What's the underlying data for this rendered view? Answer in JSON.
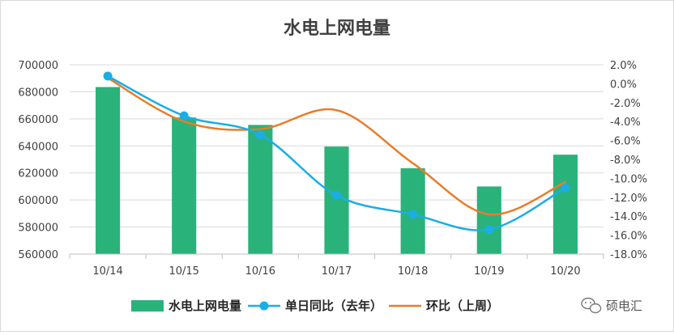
{
  "chart_data": {
    "type": "bar",
    "title": "水电上网电量",
    "categories": [
      "10/14",
      "10/15",
      "10/16",
      "10/17",
      "10/18",
      "10/19",
      "10/20"
    ],
    "series": [
      {
        "name": "水电上网电量",
        "type": "bar",
        "axis": "left",
        "color": "#2ab27b",
        "values": [
          683500,
          661000,
          655500,
          639500,
          623500,
          610000,
          633500
        ]
      },
      {
        "name": "单日同比（去年）",
        "type": "line",
        "axis": "right",
        "color": "#1aaee5",
        "markers": true,
        "values": [
          0.8,
          -3.4,
          -5.4,
          -11.8,
          -13.8,
          -15.4,
          -11.0
        ]
      },
      {
        "name": "环比（上周）",
        "type": "line",
        "axis": "right",
        "color": "#e87d2a",
        "markers": false,
        "values": [
          0.6,
          -4.0,
          -4.8,
          -2.8,
          -8.4,
          -13.8,
          -10.4
        ]
      }
    ],
    "yleft": {
      "min": 560000,
      "max": 700000,
      "step": 20000,
      "ticks": [
        "560000",
        "580000",
        "600000",
        "620000",
        "640000",
        "660000",
        "680000",
        "700000"
      ]
    },
    "yright": {
      "min": -18,
      "max": 2,
      "step": 2,
      "ticks": [
        "-18.0%",
        "-16.0%",
        "-14.0%",
        "-12.0%",
        "-10.0%",
        "-8.0%",
        "-6.0%",
        "-4.0%",
        "-2.0%",
        "0.0%",
        "2.0%"
      ]
    },
    "grid": true,
    "legend": "bottom"
  },
  "watermark": {
    "text": "硕电汇",
    "icon": "wechat-icon"
  }
}
